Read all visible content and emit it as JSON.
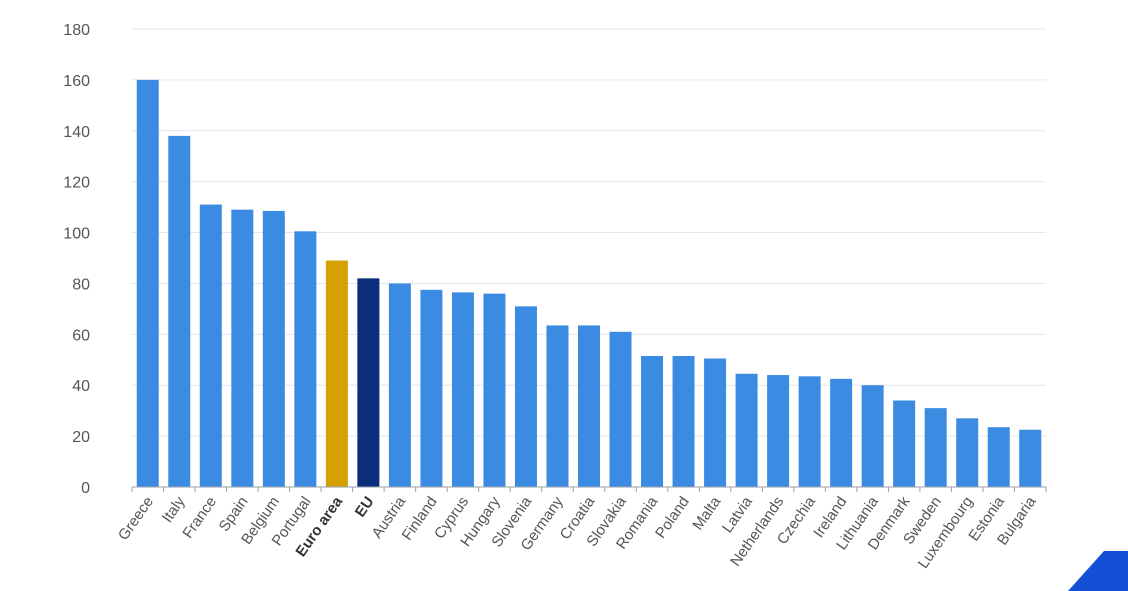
{
  "chart_data": {
    "type": "bar",
    "title": "",
    "xlabel": "",
    "ylabel": "",
    "ylim": [
      0,
      180
    ],
    "yticks": [
      0,
      20,
      40,
      60,
      80,
      100,
      120,
      140,
      160,
      180
    ],
    "grid": true,
    "categories": [
      "Greece",
      "Italy",
      "France",
      "Spain",
      "Belgium",
      "Portugal",
      "Euro area",
      "EU",
      "Austria",
      "Finland",
      "Cyprus",
      "Hungary",
      "Slovenia",
      "Germany",
      "Croatia",
      "Slovakia",
      "Romania",
      "Poland",
      "Malta",
      "Latvia",
      "Netherlands",
      "Czechia",
      "Ireland",
      "Lithuania",
      "Denmark",
      "Sweden",
      "Luxembourg",
      "Estonia",
      "Bulgaria"
    ],
    "values": [
      160,
      138,
      111,
      109,
      108.5,
      100.5,
      89,
      82,
      80,
      77.5,
      76.5,
      76,
      71,
      63.5,
      63.5,
      61,
      51.5,
      51.5,
      50.5,
      44.5,
      44,
      43.5,
      42.5,
      40,
      34,
      31,
      27,
      23.5,
      22.5
    ],
    "bold_categories": [
      "Euro area",
      "EU"
    ],
    "colors": {
      "default": "#3b8be3",
      "Euro area": "#d4a100",
      "EU": "#0b2d7a"
    }
  },
  "decoration": {
    "corner_logo_color": "#1450d6"
  }
}
